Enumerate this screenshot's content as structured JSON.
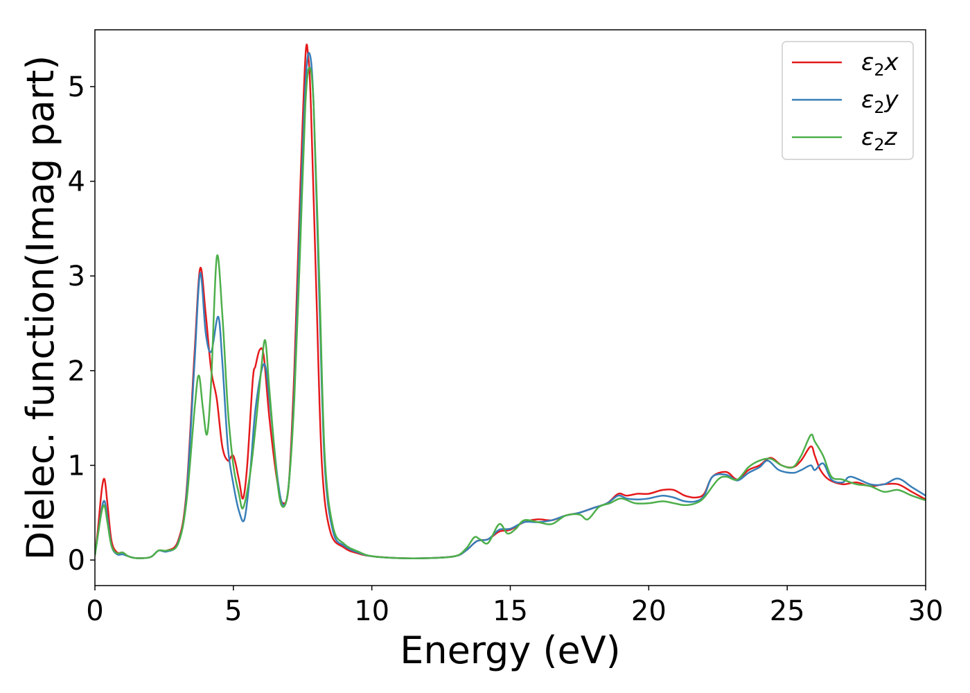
{
  "chart_data": {
    "type": "line",
    "xlabel": "Energy (eV)",
    "ylabel": "Dielec. function(Imag part)",
    "xlim": [
      0,
      30
    ],
    "ylim": [
      -0.27,
      5.6
    ],
    "xticks": [
      0,
      5,
      10,
      15,
      20,
      25,
      30
    ],
    "yticks": [
      0,
      1,
      2,
      3,
      4,
      5
    ],
    "xtick_labels": [
      "0",
      "5",
      "10",
      "15",
      "20",
      "25",
      "30"
    ],
    "ytick_labels": [
      "0",
      "1",
      "2",
      "3",
      "4",
      "5"
    ],
    "grid": false,
    "legend_position": "top-right",
    "series": [
      {
        "name": "ε₂x",
        "legend_base": "ε",
        "legend_sub": "2",
        "legend_suffix": "x",
        "color": "#e41a1c",
        "points": [
          [
            0,
            0.05
          ],
          [
            0.1,
            0.3
          ],
          [
            0.25,
            0.75
          ],
          [
            0.35,
            0.85
          ],
          [
            0.45,
            0.6
          ],
          [
            0.6,
            0.2
          ],
          [
            0.8,
            0.08
          ],
          [
            1.0,
            0.08
          ],
          [
            1.2,
            0.04
          ],
          [
            1.5,
            0.02
          ],
          [
            2.0,
            0.03
          ],
          [
            2.3,
            0.1
          ],
          [
            2.6,
            0.1
          ],
          [
            3.0,
            0.2
          ],
          [
            3.3,
            0.7
          ],
          [
            3.6,
            2.2
          ],
          [
            3.8,
            3.08
          ],
          [
            4.0,
            2.6
          ],
          [
            4.2,
            2.0
          ],
          [
            4.4,
            1.7
          ],
          [
            4.6,
            1.2
          ],
          [
            4.8,
            1.05
          ],
          [
            5.0,
            1.1
          ],
          [
            5.2,
            0.85
          ],
          [
            5.35,
            0.65
          ],
          [
            5.5,
            1.0
          ],
          [
            5.7,
            1.9
          ],
          [
            5.8,
            2.05
          ],
          [
            5.95,
            2.22
          ],
          [
            6.1,
            2.15
          ],
          [
            6.3,
            1.5
          ],
          [
            6.6,
            0.8
          ],
          [
            6.8,
            0.6
          ],
          [
            7.0,
            0.8
          ],
          [
            7.2,
            2.0
          ],
          [
            7.4,
            3.8
          ],
          [
            7.6,
            5.3
          ],
          [
            7.7,
            5.33
          ],
          [
            7.8,
            4.8
          ],
          [
            8.0,
            2.8
          ],
          [
            8.2,
            1.0
          ],
          [
            8.5,
            0.3
          ],
          [
            9.0,
            0.13
          ],
          [
            9.5,
            0.07
          ],
          [
            10,
            0.04
          ],
          [
            11,
            0.02
          ],
          [
            12,
            0.02
          ],
          [
            13,
            0.04
          ],
          [
            13.4,
            0.1
          ],
          [
            13.8,
            0.2
          ],
          [
            14.2,
            0.22
          ],
          [
            14.6,
            0.3
          ],
          [
            15.0,
            0.32
          ],
          [
            15.5,
            0.4
          ],
          [
            16.0,
            0.43
          ],
          [
            16.5,
            0.42
          ],
          [
            17.0,
            0.47
          ],
          [
            17.5,
            0.5
          ],
          [
            18.0,
            0.55
          ],
          [
            18.5,
            0.6
          ],
          [
            18.9,
            0.7
          ],
          [
            19.2,
            0.68
          ],
          [
            19.6,
            0.7
          ],
          [
            20.0,
            0.7
          ],
          [
            20.5,
            0.74
          ],
          [
            20.9,
            0.74
          ],
          [
            21.3,
            0.68
          ],
          [
            21.7,
            0.66
          ],
          [
            22.0,
            0.7
          ],
          [
            22.3,
            0.88
          ],
          [
            22.8,
            0.93
          ],
          [
            23.2,
            0.85
          ],
          [
            23.6,
            0.95
          ],
          [
            24.0,
            1.0
          ],
          [
            24.4,
            1.08
          ],
          [
            24.8,
            1.0
          ],
          [
            25.2,
            0.98
          ],
          [
            25.5,
            1.05
          ],
          [
            25.85,
            1.2
          ],
          [
            26.0,
            1.1
          ],
          [
            26.2,
            0.95
          ],
          [
            26.5,
            0.85
          ],
          [
            27.0,
            0.8
          ],
          [
            27.5,
            0.82
          ],
          [
            28.0,
            0.78
          ],
          [
            28.5,
            0.8
          ],
          [
            29.0,
            0.8
          ],
          [
            29.5,
            0.72
          ],
          [
            30.0,
            0.64
          ]
        ]
      },
      {
        "name": "ε₂y",
        "legend_base": "ε",
        "legend_sub": "2",
        "legend_suffix": "y",
        "color": "#377eb8",
        "points": [
          [
            0,
            0.05
          ],
          [
            0.1,
            0.25
          ],
          [
            0.25,
            0.55
          ],
          [
            0.35,
            0.62
          ],
          [
            0.45,
            0.45
          ],
          [
            0.6,
            0.15
          ],
          [
            0.8,
            0.06
          ],
          [
            1.0,
            0.06
          ],
          [
            1.2,
            0.04
          ],
          [
            1.5,
            0.02
          ],
          [
            2.0,
            0.03
          ],
          [
            2.3,
            0.1
          ],
          [
            2.6,
            0.09
          ],
          [
            3.0,
            0.18
          ],
          [
            3.3,
            0.65
          ],
          [
            3.6,
            2.1
          ],
          [
            3.8,
            3.03
          ],
          [
            4.0,
            2.4
          ],
          [
            4.2,
            2.2
          ],
          [
            4.45,
            2.57
          ],
          [
            4.6,
            2.1
          ],
          [
            4.8,
            1.2
          ],
          [
            5.0,
            0.8
          ],
          [
            5.2,
            0.52
          ],
          [
            5.4,
            0.43
          ],
          [
            5.6,
            0.9
          ],
          [
            5.8,
            1.6
          ],
          [
            6.1,
            2.07
          ],
          [
            6.3,
            1.7
          ],
          [
            6.6,
            0.85
          ],
          [
            6.8,
            0.58
          ],
          [
            7.0,
            0.8
          ],
          [
            7.2,
            1.8
          ],
          [
            7.4,
            3.5
          ],
          [
            7.6,
            5.0
          ],
          [
            7.75,
            5.35
          ],
          [
            7.9,
            4.8
          ],
          [
            8.1,
            2.8
          ],
          [
            8.3,
            1.0
          ],
          [
            8.6,
            0.3
          ],
          [
            9.0,
            0.15
          ],
          [
            9.5,
            0.08
          ],
          [
            10,
            0.04
          ],
          [
            11,
            0.02
          ],
          [
            12,
            0.02
          ],
          [
            13,
            0.04
          ],
          [
            13.4,
            0.1
          ],
          [
            13.8,
            0.2
          ],
          [
            14.2,
            0.22
          ],
          [
            14.6,
            0.32
          ],
          [
            15.0,
            0.33
          ],
          [
            15.5,
            0.4
          ],
          [
            16.0,
            0.4
          ],
          [
            16.5,
            0.42
          ],
          [
            17.0,
            0.47
          ],
          [
            17.5,
            0.5
          ],
          [
            18.0,
            0.55
          ],
          [
            18.5,
            0.6
          ],
          [
            18.9,
            0.68
          ],
          [
            19.2,
            0.65
          ],
          [
            19.6,
            0.64
          ],
          [
            20.0,
            0.65
          ],
          [
            20.5,
            0.68
          ],
          [
            20.9,
            0.66
          ],
          [
            21.3,
            0.62
          ],
          [
            21.7,
            0.62
          ],
          [
            22.0,
            0.68
          ],
          [
            22.3,
            0.88
          ],
          [
            22.8,
            0.9
          ],
          [
            23.2,
            0.84
          ],
          [
            23.6,
            0.92
          ],
          [
            24.0,
            0.98
          ],
          [
            24.3,
            1.05
          ],
          [
            24.7,
            0.95
          ],
          [
            25.2,
            0.92
          ],
          [
            25.5,
            0.95
          ],
          [
            25.85,
            1.0
          ],
          [
            26.0,
            0.95
          ],
          [
            26.3,
            1.02
          ],
          [
            26.6,
            0.85
          ],
          [
            27.0,
            0.82
          ],
          [
            27.3,
            0.88
          ],
          [
            28.0,
            0.8
          ],
          [
            28.5,
            0.8
          ],
          [
            29.0,
            0.86
          ],
          [
            29.5,
            0.77
          ],
          [
            30.0,
            0.68
          ]
        ]
      },
      {
        "name": "ε₂z",
        "legend_base": "ε",
        "legend_sub": "2",
        "legend_suffix": "z",
        "color": "#4daf4a",
        "points": [
          [
            0,
            0.05
          ],
          [
            0.1,
            0.25
          ],
          [
            0.25,
            0.52
          ],
          [
            0.35,
            0.57
          ],
          [
            0.45,
            0.4
          ],
          [
            0.6,
            0.15
          ],
          [
            0.8,
            0.07
          ],
          [
            1.0,
            0.08
          ],
          [
            1.2,
            0.04
          ],
          [
            1.5,
            0.02
          ],
          [
            2.0,
            0.03
          ],
          [
            2.3,
            0.1
          ],
          [
            2.6,
            0.1
          ],
          [
            3.0,
            0.17
          ],
          [
            3.3,
            0.6
          ],
          [
            3.6,
            1.6
          ],
          [
            3.75,
            1.95
          ],
          [
            3.9,
            1.6
          ],
          [
            4.05,
            1.33
          ],
          [
            4.2,
            1.9
          ],
          [
            4.4,
            3.2
          ],
          [
            4.6,
            2.6
          ],
          [
            4.8,
            1.6
          ],
          [
            5.0,
            1.0
          ],
          [
            5.2,
            0.7
          ],
          [
            5.35,
            0.55
          ],
          [
            5.6,
            0.9
          ],
          [
            5.8,
            1.4
          ],
          [
            6.0,
            2.0
          ],
          [
            6.15,
            2.32
          ],
          [
            6.3,
            1.8
          ],
          [
            6.6,
            0.8
          ],
          [
            6.8,
            0.56
          ],
          [
            7.0,
            0.8
          ],
          [
            7.2,
            1.7
          ],
          [
            7.4,
            3.2
          ],
          [
            7.6,
            4.8
          ],
          [
            7.75,
            5.2
          ],
          [
            7.9,
            4.8
          ],
          [
            8.1,
            3.0
          ],
          [
            8.3,
            1.1
          ],
          [
            8.6,
            0.35
          ],
          [
            9.0,
            0.17
          ],
          [
            9.5,
            0.09
          ],
          [
            10,
            0.04
          ],
          [
            11,
            0.02
          ],
          [
            12,
            0.02
          ],
          [
            13,
            0.04
          ],
          [
            13.4,
            0.12
          ],
          [
            13.7,
            0.24
          ],
          [
            13.9,
            0.22
          ],
          [
            14.2,
            0.18
          ],
          [
            14.6,
            0.38
          ],
          [
            14.9,
            0.28
          ],
          [
            15.2,
            0.33
          ],
          [
            15.5,
            0.42
          ],
          [
            16.0,
            0.4
          ],
          [
            16.5,
            0.38
          ],
          [
            17.0,
            0.47
          ],
          [
            17.5,
            0.48
          ],
          [
            17.8,
            0.43
          ],
          [
            18.2,
            0.56
          ],
          [
            18.6,
            0.6
          ],
          [
            19.0,
            0.65
          ],
          [
            19.5,
            0.6
          ],
          [
            20.0,
            0.6
          ],
          [
            20.5,
            0.62
          ],
          [
            20.9,
            0.6
          ],
          [
            21.3,
            0.58
          ],
          [
            21.7,
            0.6
          ],
          [
            22.0,
            0.66
          ],
          [
            22.5,
            0.85
          ],
          [
            22.8,
            0.88
          ],
          [
            23.2,
            0.85
          ],
          [
            23.6,
            0.98
          ],
          [
            24.0,
            1.05
          ],
          [
            24.4,
            1.07
          ],
          [
            24.8,
            1.0
          ],
          [
            25.2,
            0.98
          ],
          [
            25.5,
            1.1
          ],
          [
            25.85,
            1.32
          ],
          [
            26.0,
            1.25
          ],
          [
            26.3,
            1.1
          ],
          [
            26.6,
            0.88
          ],
          [
            27.0,
            0.85
          ],
          [
            27.5,
            0.8
          ],
          [
            28.0,
            0.78
          ],
          [
            28.5,
            0.72
          ],
          [
            29.0,
            0.74
          ],
          [
            29.5,
            0.68
          ],
          [
            30.0,
            0.63
          ]
        ]
      }
    ]
  }
}
